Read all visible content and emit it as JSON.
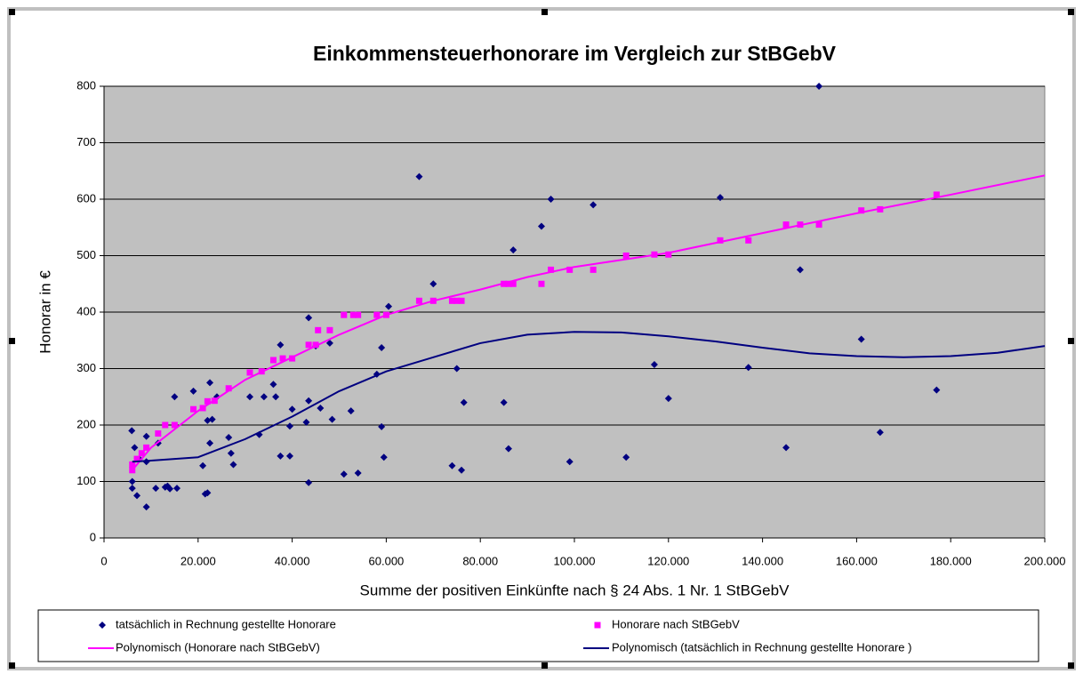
{
  "chart_data": {
    "type": "scatter",
    "title": "Einkommensteuerhonorare im Vergleich zur StBGebV",
    "xlabel": "Summe der positiven Einkünfte nach § 24 Abs. 1 Nr. 1 StBGebV",
    "ylabel": "Honorar in €",
    "xlim": [
      0,
      200000
    ],
    "xticks": [
      0,
      {
        "value": 20000,
        "label": "20.000"
      },
      {
        "value": 40000,
        "label": "40.000"
      },
      {
        "value": 60000,
        "label": "60.000"
      },
      {
        "value": 80000,
        "label": "80.000"
      },
      {
        "value": 100000,
        "label": "100.000"
      },
      {
        "value": 120000,
        "label": "120.000"
      },
      {
        "value": 140000,
        "label": "140.000"
      },
      {
        "value": 160000,
        "label": "160.000"
      },
      {
        "value": 180000,
        "label": "180.000"
      },
      {
        "value": 200000,
        "label": "200.000"
      }
    ],
    "ylim": [
      0,
      800
    ],
    "yticks": [
      0,
      100,
      200,
      300,
      400,
      500,
      600,
      700,
      800
    ],
    "grid": true,
    "legend": "bottom",
    "series": [
      {
        "name": "tatsächlich in Rechnung gestellte Honorare",
        "color": "#000080",
        "type": "scatter",
        "marker": "diamond",
        "x": [
          5900,
          6000,
          6000,
          6500,
          7000,
          7500,
          9000,
          9000,
          9000,
          11000,
          11500,
          13000,
          13500,
          14000,
          15000,
          15500,
          19000,
          21000,
          21500,
          22000,
          22000,
          22500,
          22500,
          23000,
          24000,
          26500,
          27000,
          27500,
          31000,
          33000,
          34000,
          36000,
          36500,
          37500,
          37500,
          39500,
          39500,
          40000,
          43000,
          43500,
          43500,
          43500,
          45000,
          46000,
          48000,
          48500,
          51000,
          52500,
          54000,
          58000,
          59000,
          59000,
          59500,
          60500,
          67000,
          70000,
          74000,
          75000,
          76000,
          76500,
          85000,
          86000,
          87000,
          93000,
          95000,
          99000,
          104000,
          111000,
          117000,
          120000,
          131000,
          137000,
          145000,
          148000,
          152000,
          161000,
          165000,
          177000
        ],
        "values": [
          190,
          100,
          88,
          160,
          75,
          140,
          180,
          55,
          135,
          88,
          168,
          90,
          92,
          87,
          250,
          88,
          260,
          128,
          78,
          80,
          208,
          275,
          168,
          210,
          250,
          178,
          150,
          130,
          250,
          183,
          250,
          272,
          250,
          145,
          342,
          145,
          198,
          228,
          205,
          243,
          390,
          98,
          340,
          230,
          345,
          210,
          113,
          225,
          115,
          290,
          197,
          337,
          143,
          410,
          640,
          450,
          128,
          300,
          120,
          240,
          240,
          158,
          510,
          552,
          600,
          135,
          590,
          143,
          307,
          247,
          603,
          302,
          160,
          475,
          800,
          352,
          187,
          262
        ]
      },
      {
        "name": "Honorare nach StBGebV",
        "color": "#ff00ff",
        "type": "scatter",
        "marker": "square",
        "x": [
          6000,
          6000,
          7000,
          8000,
          9000,
          11500,
          13000,
          15000,
          19000,
          21000,
          22000,
          23500,
          26500,
          31000,
          33500,
          36000,
          38000,
          40000,
          43500,
          45000,
          45500,
          48000,
          51000,
          53000,
          54000,
          58000,
          60000,
          67000,
          70000,
          74000,
          75000,
          76000,
          85000,
          86000,
          87000,
          93000,
          95000,
          99000,
          104000,
          111000,
          117000,
          120000,
          131000,
          137000,
          145000,
          148000,
          152000,
          161000,
          165000,
          177000
        ],
        "values": [
          120,
          130,
          140,
          150,
          160,
          185,
          200,
          200,
          228,
          230,
          242,
          243,
          265,
          293,
          295,
          315,
          318,
          318,
          342,
          342,
          368,
          368,
          395,
          395,
          395,
          395,
          395,
          420,
          420,
          420,
          420,
          420,
          450,
          450,
          450,
          450,
          475,
          475,
          475,
          500,
          502,
          502,
          527,
          527,
          555,
          555,
          555,
          580,
          582,
          608
        ]
      },
      {
        "name": "Polynomisch (Honorare nach StBGebV)",
        "color": "#ff00ff",
        "type": "line",
        "x": [
          6000,
          10000,
          20000,
          30000,
          40000,
          50000,
          60000,
          70000,
          80000,
          90000,
          100000,
          120000,
          140000,
          160000,
          180000,
          200000
        ],
        "values": [
          120,
          160,
          225,
          280,
          320,
          360,
          395,
          420,
          440,
          462,
          480,
          505,
          540,
          575,
          608,
          642
        ]
      },
      {
        "name": "Polynomisch (tatsächlich in Rechnung gestellte Honorare )",
        "color": "#000080",
        "type": "line",
        "x": [
          6000,
          10000,
          20000,
          30000,
          40000,
          50000,
          60000,
          70000,
          80000,
          90000,
          100000,
          110000,
          120000,
          130000,
          140000,
          150000,
          160000,
          170000,
          180000,
          190000,
          200000
        ],
        "values": [
          135,
          137,
          143,
          175,
          215,
          260,
          295,
          320,
          345,
          360,
          365,
          364,
          357,
          348,
          337,
          327,
          322,
          320,
          322,
          328,
          340
        ]
      }
    ]
  }
}
